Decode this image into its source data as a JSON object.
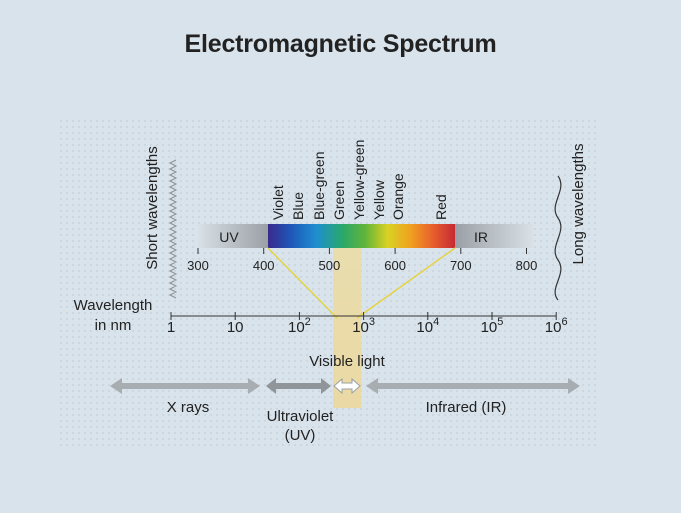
{
  "title": "Electromagnetic Spectrum",
  "short_wavelengths_label": "Short wavelengths",
  "long_wavelengths_label": "Long wavelengths",
  "colors": [
    "Violet",
    "Blue",
    "Blue-green",
    "Green",
    "Yellow-green",
    "Yellow",
    "Orange",
    "Red"
  ],
  "band_labels": {
    "uv": "UV",
    "ir": "IR"
  },
  "visible_scale_ticks": [
    "300",
    "400",
    "500",
    "600",
    "700",
    "800"
  ],
  "wavelength_axis": {
    "label_line1": "Wavelength",
    "label_line2": "in nm",
    "ticks": [
      {
        "base": "1",
        "exp": ""
      },
      {
        "base": "10",
        "exp": ""
      },
      {
        "base": "10",
        "exp": "2"
      },
      {
        "base": "10",
        "exp": "3"
      },
      {
        "base": "10",
        "exp": "4"
      },
      {
        "base": "10",
        "exp": "5"
      },
      {
        "base": "10",
        "exp": "6"
      }
    ]
  },
  "region_labels": {
    "visible": "Visible light",
    "xrays": "X rays",
    "ultraviolet_line1": "Ultraviolet",
    "ultraviolet_line2": "(UV)",
    "infrared": "Infrared (IR)"
  },
  "accent_colors": {
    "background": "#d9e3eb",
    "visible_band": "#e8d9a8",
    "connector": "#e6d23a",
    "arrow": "#a8adb2"
  }
}
